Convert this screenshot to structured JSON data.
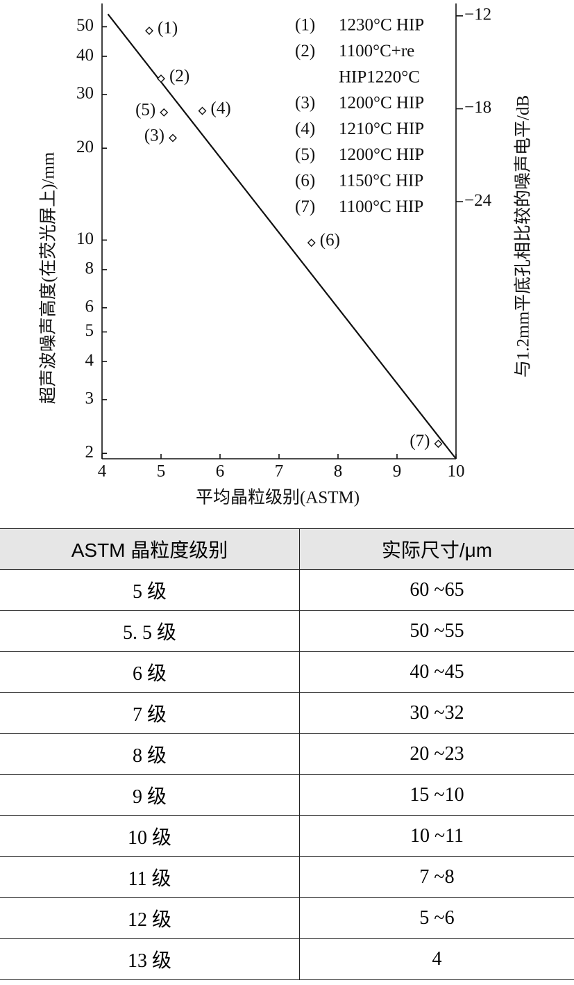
{
  "chart_data": {
    "type": "scatter",
    "y_axis_label": "超声波噪声高度(在荧光屏上)/mm",
    "y2_axis_label": "与1.2mm平底孔相比较的噪声电平/dB",
    "x_axis_label": "平均晶粒级别(ASTM)",
    "xlim": [
      4,
      10
    ],
    "xticks": [
      4,
      5,
      6,
      7,
      8,
      9,
      10
    ],
    "ylim": [
      1.92,
      59.6
    ],
    "log_y": true,
    "yticks": [
      2,
      3,
      4,
      5,
      6,
      8,
      10,
      20,
      30,
      40,
      50
    ],
    "y2lim": [
      -40.6,
      -11.2
    ],
    "y2ticks": [
      {
        "value": -12,
        "label": "−12"
      },
      {
        "value": -18,
        "label": "−18"
      },
      {
        "value": -24,
        "label": "−24"
      }
    ],
    "color": "#111",
    "points": {
      "labels": [
        "(1)",
        "(2)",
        "(3)",
        "(4)",
        "(5)",
        "(6)",
        "(7)"
      ],
      "x": [
        4.8,
        5.0,
        5.2,
        5.7,
        5.05,
        7.55,
        9.7
      ],
      "y": [
        48.5,
        33.8,
        21.6,
        26.5,
        26.2,
        9.8,
        2.15
      ]
    },
    "fit_line": {
      "x": [
        4.1,
        10
      ],
      "y": [
        55,
        1.92
      ]
    },
    "legend": [
      {
        "id": "(1)",
        "lines": [
          "1230°C HIP"
        ]
      },
      {
        "id": "(2)",
        "lines": [
          "1100°C+re",
          "HIP1220°C"
        ]
      },
      {
        "id": "(3)",
        "lines": [
          "1200°C HIP"
        ]
      },
      {
        "id": "(4)",
        "lines": [
          "1210°C HIP"
        ]
      },
      {
        "id": "(5)",
        "lines": [
          "1200°C HIP"
        ]
      },
      {
        "id": "(6)",
        "lines": [
          "1150°C HIP"
        ]
      },
      {
        "id": "(7)",
        "lines": [
          "1100°C HIP"
        ]
      }
    ]
  },
  "table": {
    "header": [
      "ASTM 晶粒度级别",
      "实际尺寸/μm"
    ],
    "rows": [
      [
        "5 级",
        "60 ~65"
      ],
      [
        "5. 5 级",
        "50 ~55"
      ],
      [
        "6 级",
        "40 ~45"
      ],
      [
        "7 级",
        "30 ~32"
      ],
      [
        "8 级",
        "20 ~23"
      ],
      [
        "9 级",
        "15 ~10"
      ],
      [
        "10 级",
        "10 ~11"
      ],
      [
        "11 级",
        "7 ~8"
      ],
      [
        "12 级",
        "5 ~6"
      ],
      [
        "13 级",
        "4"
      ]
    ]
  }
}
